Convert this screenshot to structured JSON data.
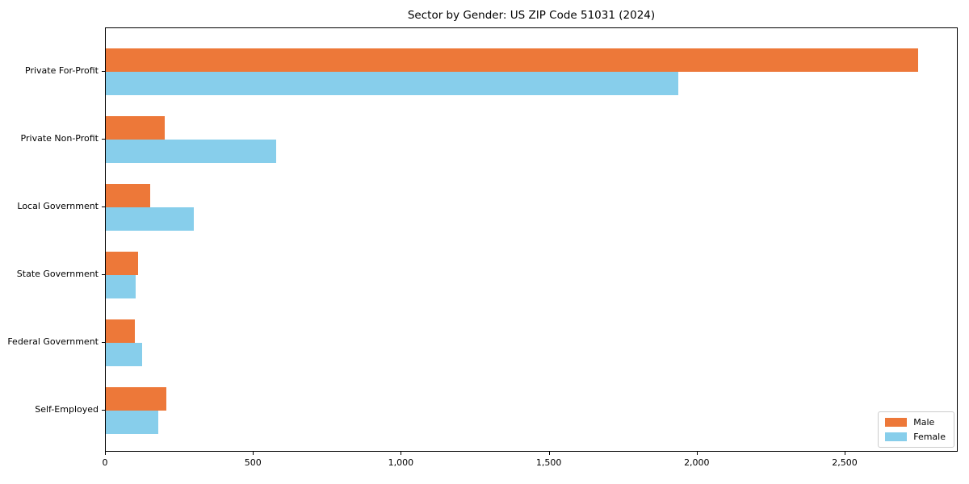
{
  "chart_data": {
    "type": "bar",
    "orientation": "horizontal",
    "title": "Sector by Gender: US ZIP Code 51031 (2024)",
    "categories": [
      "Private For-Profit",
      "Private Non-Profit",
      "Local Government",
      "State Government",
      "Federal Government",
      "Self-Employed"
    ],
    "series": [
      {
        "name": "Male",
        "color": "#ED7839",
        "values": [
          2745,
          200,
          150,
          110,
          98,
          205
        ]
      },
      {
        "name": "Female",
        "color": "#87CEEB",
        "values": [
          1935,
          576,
          297,
          101,
          122,
          177
        ]
      }
    ],
    "xlabel": "",
    "ylabel": "",
    "xlim": [
      0,
      2882
    ],
    "xticks": [
      0,
      500,
      1000,
      1500,
      2000,
      2500
    ],
    "xtick_labels": [
      "0",
      "500",
      "1,000",
      "1,500",
      "2,000",
      "2,500"
    ],
    "grid": false,
    "legend_position": "lower right",
    "axis_color": "#000000",
    "background_color": "#ffffff"
  }
}
